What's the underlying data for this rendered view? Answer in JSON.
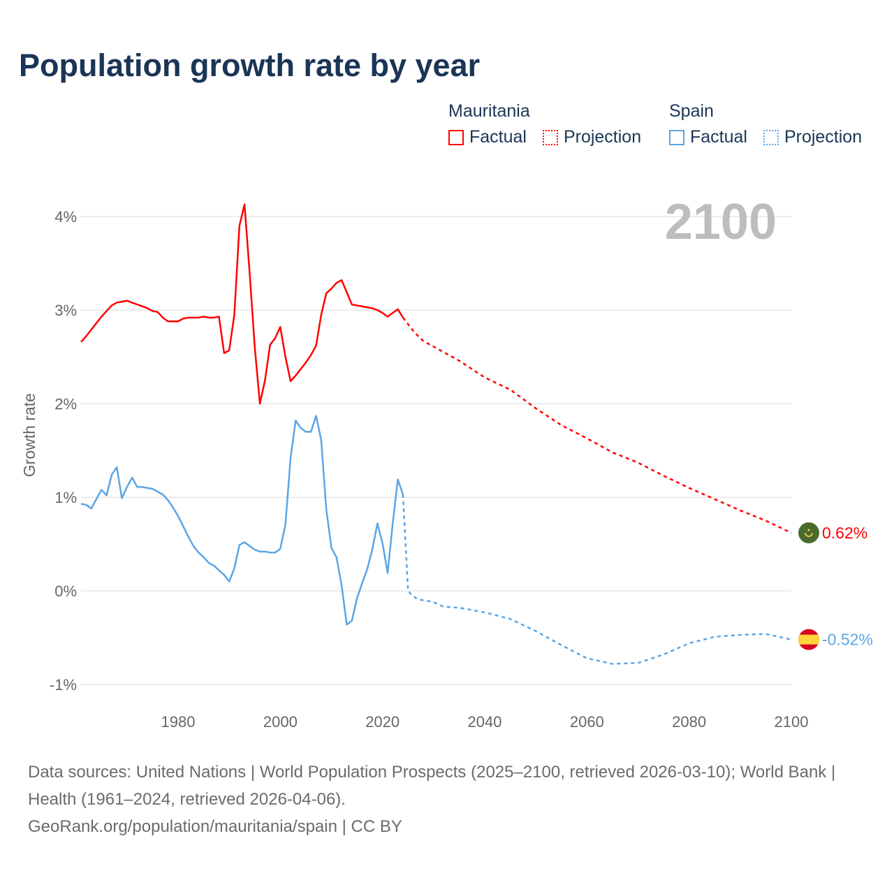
{
  "title": "Population growth rate by year",
  "legend": [
    {
      "country": "Mauritania",
      "factual": "Factual",
      "projection": "Projection",
      "color": "#ff0000"
    },
    {
      "country": "Spain",
      "factual": "Factual",
      "projection": "Projection",
      "color": "#5aa5e6"
    }
  ],
  "year_label": "2100",
  "footer": {
    "sources": "Data sources: United Nations | World Population Prospects (2025–2100, retrieved 2026-03-10); World Bank | Health (1961–2024, retrieved 2026-04-06).",
    "credit": "GeoRank.org/population/mauritania/spain | CC BY"
  },
  "chart_data": {
    "type": "line",
    "title": "Population growth rate by year",
    "xlabel": "",
    "ylabel": "Growth rate",
    "xlim": [
      1961,
      2100
    ],
    "ylim": [
      -1.25,
      4.25
    ],
    "xticks": [
      1980,
      2000,
      2020,
      2040,
      2060,
      2080,
      2100
    ],
    "xtick_labels": [
      "1980",
      "2000",
      "2020",
      "2040",
      "2060",
      "2080",
      "2100"
    ],
    "yticks": [
      -1,
      0,
      1,
      2,
      3,
      4
    ],
    "ytick_labels": [
      "-1%",
      "0%",
      "1%",
      "2%",
      "3%",
      "4%"
    ],
    "grid": true,
    "legend_position": "top-right",
    "series": [
      {
        "name": "Mauritania",
        "color": "#ff0000",
        "end_label": "0.62%",
        "flag": "mauritania-flag",
        "factual": {
          "x": [
            1961,
            1962,
            1963,
            1964,
            1965,
            1966,
            1967,
            1968,
            1969,
            1970,
            1971,
            1972,
            1973,
            1974,
            1975,
            1976,
            1977,
            1978,
            1979,
            1980,
            1981,
            1982,
            1983,
            1984,
            1985,
            1986,
            1987,
            1988,
            1989,
            1990,
            1991,
            1992,
            1993,
            1994,
            1995,
            1996,
            1997,
            1998,
            1999,
            2000,
            2001,
            2002,
            2003,
            2004,
            2005,
            2006,
            2007,
            2008,
            2009,
            2010,
            2011,
            2012,
            2013,
            2014,
            2015,
            2016,
            2017,
            2018,
            2019,
            2020,
            2021,
            2022,
            2023,
            2024
          ],
          "y": [
            2.66,
            2.72,
            2.79,
            2.86,
            2.93,
            2.99,
            3.05,
            3.08,
            3.09,
            3.1,
            3.08,
            3.06,
            3.04,
            3.02,
            2.99,
            2.98,
            2.92,
            2.88,
            2.88,
            2.88,
            2.91,
            2.92,
            2.92,
            2.92,
            2.93,
            2.92,
            2.92,
            2.93,
            2.54,
            2.57,
            2.95,
            3.9,
            4.13,
            3.4,
            2.6,
            2.0,
            2.25,
            2.63,
            2.7,
            2.82,
            2.5,
            2.24,
            2.3,
            2.37,
            2.44,
            2.52,
            2.62,
            2.95,
            3.18,
            3.23,
            3.29,
            3.32,
            3.19,
            3.06,
            3.05,
            3.04,
            3.03,
            3.02,
            3.0,
            2.97,
            2.93,
            2.97,
            3.01,
            2.92
          ]
        },
        "projection": {
          "x": [
            2024,
            2025,
            2026,
            2027,
            2028,
            2030,
            2035,
            2040,
            2045,
            2050,
            2055,
            2060,
            2065,
            2070,
            2075,
            2080,
            2085,
            2090,
            2095,
            2100
          ],
          "y": [
            2.92,
            2.85,
            2.78,
            2.72,
            2.67,
            2.61,
            2.46,
            2.28,
            2.15,
            1.95,
            1.77,
            1.63,
            1.48,
            1.37,
            1.23,
            1.1,
            0.98,
            0.86,
            0.75,
            0.62
          ]
        }
      },
      {
        "name": "Spain",
        "color": "#5aa5e6",
        "end_label": "-0.52%",
        "flag": "spain-flag",
        "factual": {
          "x": [
            1961,
            1962,
            1963,
            1964,
            1965,
            1966,
            1967,
            1968,
            1969,
            1970,
            1971,
            1972,
            1973,
            1974,
            1975,
            1976,
            1977,
            1978,
            1979,
            1980,
            1981,
            1982,
            1983,
            1984,
            1985,
            1986,
            1987,
            1988,
            1989,
            1990,
            1991,
            1992,
            1993,
            1994,
            1995,
            1996,
            1997,
            1998,
            1999,
            2000,
            2001,
            2002,
            2003,
            2004,
            2005,
            2006,
            2007,
            2008,
            2009,
            2010,
            2011,
            2012,
            2013,
            2014,
            2015,
            2016,
            2017,
            2018,
            2019,
            2020,
            2021,
            2022,
            2023,
            2024
          ],
          "y": [
            0.93,
            0.92,
            0.88,
            0.98,
            1.08,
            1.02,
            1.24,
            1.32,
            0.99,
            1.11,
            1.21,
            1.11,
            1.11,
            1.1,
            1.09,
            1.06,
            1.03,
            0.97,
            0.89,
            0.8,
            0.69,
            0.58,
            0.48,
            0.41,
            0.36,
            0.3,
            0.27,
            0.22,
            0.17,
            0.1,
            0.24,
            0.49,
            0.52,
            0.48,
            0.44,
            0.42,
            0.42,
            0.41,
            0.41,
            0.45,
            0.71,
            1.42,
            1.82,
            1.74,
            1.7,
            1.7,
            1.87,
            1.61,
            0.87,
            0.46,
            0.36,
            0.06,
            -0.36,
            -0.32,
            -0.08,
            0.08,
            0.23,
            0.44,
            0.72,
            0.51,
            0.19,
            0.72,
            1.19,
            1.03
          ]
        },
        "projection": {
          "x": [
            2024,
            2025,
            2026,
            2027,
            2030,
            2032,
            2035,
            2040,
            2045,
            2050,
            2055,
            2060,
            2065,
            2070,
            2075,
            2080,
            2085,
            2090,
            2095,
            2100
          ],
          "y": [
            1.03,
            0.0,
            -0.06,
            -0.09,
            -0.12,
            -0.17,
            -0.18,
            -0.23,
            -0.3,
            -0.43,
            -0.58,
            -0.72,
            -0.78,
            -0.77,
            -0.68,
            -0.56,
            -0.49,
            -0.47,
            -0.46,
            -0.52
          ]
        }
      }
    ]
  }
}
